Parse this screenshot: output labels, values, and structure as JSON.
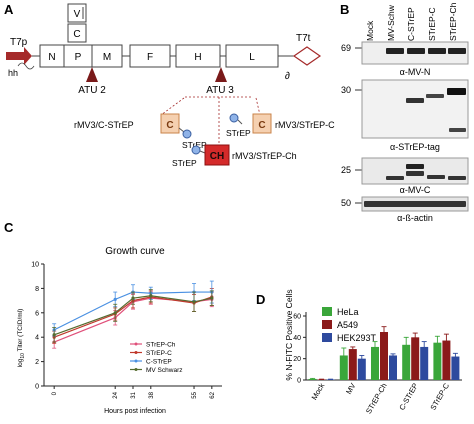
{
  "panels": {
    "A": "A",
    "B": "B",
    "C": "C",
    "D": "D"
  },
  "genome": {
    "t7p": "T7p",
    "hh": "hh",
    "t7t": "T7t",
    "delta": "∂",
    "genes": [
      "N",
      "P",
      "M",
      "F",
      "H",
      "L"
    ],
    "stack_v": "V",
    "stack_c": "C",
    "atu2": "ATU 2",
    "atu3": "ATU 3"
  },
  "constructs": {
    "c_box": "C",
    "ch_box": "CH",
    "strep": "STrEP",
    "rmv3_c_strep": "rMV3/C-STrEP",
    "rmv3_strep_c": "rMV3/STrEP-C",
    "rmv3_strep_ch": "rMV3/STrEP-Ch"
  },
  "western": {
    "lanes": [
      "Mock",
      "MV-Schw",
      "C-STrEP",
      "STrEP-C",
      "STrEP-Ch"
    ],
    "blots": [
      {
        "marker": "69",
        "label": "α-MV-N"
      },
      {
        "marker": "30",
        "label": "α-STrEP-tag"
      },
      {
        "marker": "25",
        "label": "α-MV-C"
      },
      {
        "marker": "50",
        "label": "α-ß-actin"
      }
    ]
  },
  "chart_data": [
    {
      "type": "line",
      "title": "Growth curve",
      "xlabel": "Hours post infection",
      "ylabel": "log10 Titer (TCID/ml)",
      "ylabel_main": "log",
      "ylabel_sub": "10",
      "ylabel_rest": " Titer (TCID/ml)",
      "x": [
        0,
        24,
        31,
        38,
        55,
        62
      ],
      "x_tick_labels": [
        "0",
        "24",
        "31",
        "38",
        "55",
        "62"
      ],
      "y_ticks": [
        "0",
        "2",
        "4",
        "6",
        "8",
        "10"
      ],
      "ylim": [
        0,
        10
      ],
      "series": [
        {
          "name": "STrEP-Ch",
          "color": "#e0507a",
          "values": [
            3.6,
            5.6,
            6.9,
            7.2,
            6.9,
            7.1
          ],
          "err": [
            0.5,
            0.6,
            0.6,
            0.5,
            0.8,
            0.6
          ]
        },
        {
          "name": "STrEP-C",
          "color": "#c0392b",
          "values": [
            4.0,
            5.9,
            7.0,
            7.3,
            6.8,
            7.3
          ],
          "err": [
            0.5,
            0.5,
            0.6,
            0.5,
            0.7,
            0.7
          ]
        },
        {
          "name": "C-STrEP",
          "color": "#4a90e2",
          "values": [
            4.6,
            7.1,
            7.7,
            7.6,
            7.7,
            7.7
          ],
          "err": [
            0.5,
            0.6,
            0.6,
            0.5,
            0.7,
            0.9
          ]
        },
        {
          "name": "MV Schwarz",
          "color": "#556b2f",
          "values": [
            4.2,
            6.0,
            7.2,
            7.4,
            6.9,
            7.2
          ],
          "err": [
            0.6,
            0.7,
            0.5,
            0.5,
            0.8,
            0.6
          ]
        }
      ]
    },
    {
      "type": "bar",
      "ylabel": "% N-FITC Positive Cells",
      "categories": [
        "Mock",
        "MV",
        "STrEP-Ch",
        "C-STrEP",
        "STrEP-C"
      ],
      "y_ticks": [
        "0",
        "20",
        "40",
        "60"
      ],
      "ylim": [
        0,
        60
      ],
      "series": [
        {
          "name": "HeLa",
          "color": "#3aa63a",
          "values": [
            1,
            23,
            31,
            33,
            35
          ],
          "err": [
            0.5,
            7,
            5,
            7,
            6
          ]
        },
        {
          "name": "A549",
          "color": "#8b1a1a",
          "values": [
            0.5,
            29,
            45,
            40,
            37
          ],
          "err": [
            0.3,
            2,
            5,
            4,
            6
          ]
        },
        {
          "name": "HEK293T",
          "color": "#2e4a9e",
          "values": [
            0.5,
            20,
            23,
            31,
            22
          ],
          "err": [
            0.3,
            3,
            1.5,
            5,
            3
          ]
        }
      ]
    }
  ]
}
